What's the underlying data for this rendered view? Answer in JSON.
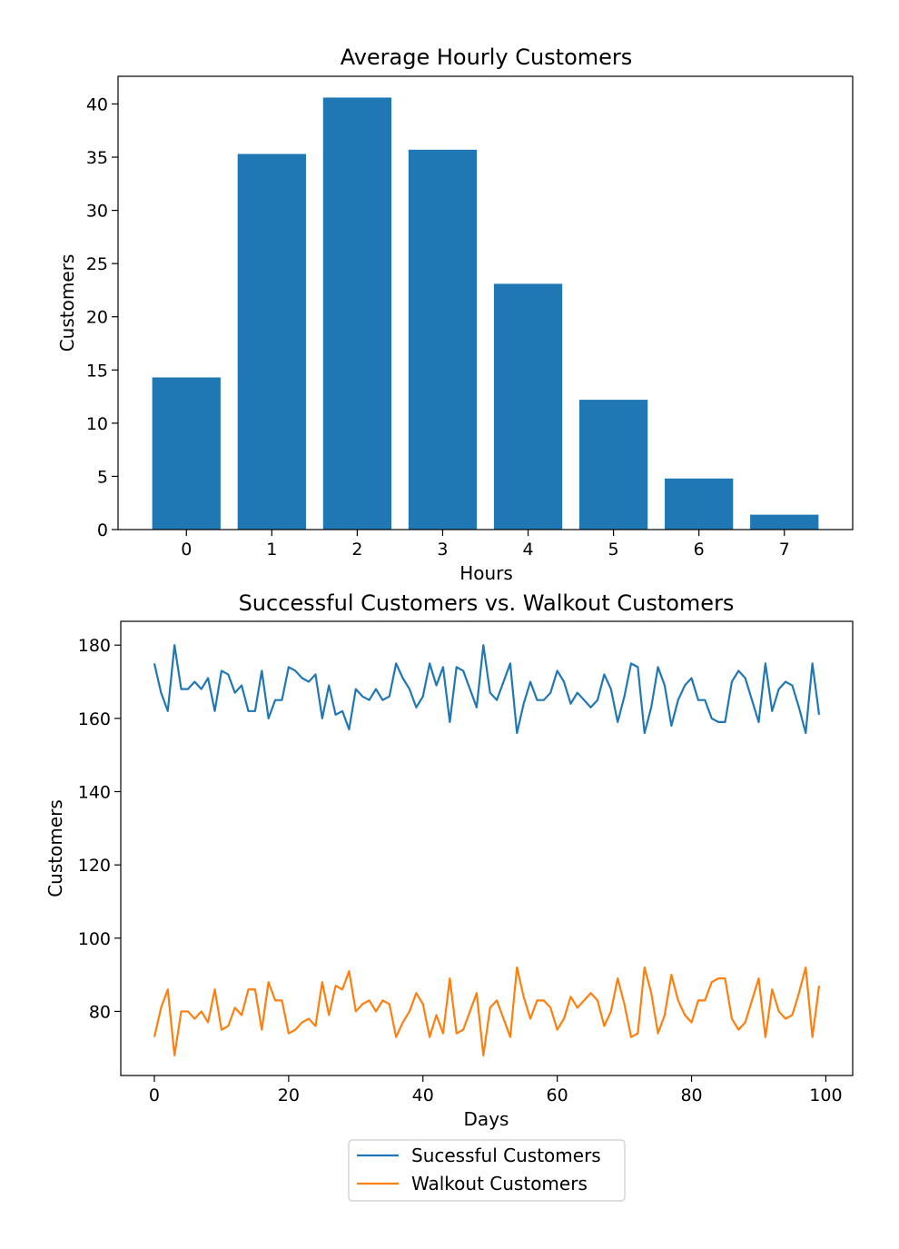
{
  "chart_data": [
    {
      "type": "bar",
      "title": "Average Hourly Customers",
      "xlabel": "Hours",
      "ylabel": "Customers",
      "categories": [
        "0",
        "1",
        "2",
        "3",
        "4",
        "5",
        "6",
        "7"
      ],
      "values": [
        14.3,
        35.3,
        40.6,
        35.7,
        23.1,
        12.2,
        4.8,
        1.4
      ],
      "xlim": [
        -0.8,
        7.8
      ],
      "ylim": [
        0,
        42.6
      ],
      "yticks": [
        0,
        5,
        10,
        15,
        20,
        25,
        30,
        35,
        40
      ],
      "color": "#1f77b4",
      "grid": false
    },
    {
      "type": "line",
      "title": "Successful Customers vs. Walkout Customers",
      "xlabel": "Days",
      "ylabel": "Customers",
      "xlim": [
        -5,
        104
      ],
      "ylim": [
        62.5,
        186.5
      ],
      "xticks": [
        0,
        20,
        40,
        60,
        80,
        100
      ],
      "yticks": [
        80,
        100,
        120,
        140,
        160,
        180
      ],
      "grid": false,
      "legend_position": "below",
      "x": [
        0,
        1,
        2,
        3,
        4,
        5,
        6,
        7,
        8,
        9,
        10,
        11,
        12,
        13,
        14,
        15,
        16,
        17,
        18,
        19,
        20,
        21,
        22,
        23,
        24,
        25,
        26,
        27,
        28,
        29,
        30,
        31,
        32,
        33,
        34,
        35,
        36,
        37,
        38,
        39,
        40,
        41,
        42,
        43,
        44,
        45,
        46,
        47,
        48,
        49,
        50,
        51,
        52,
        53,
        54,
        55,
        56,
        57,
        58,
        59,
        60,
        61,
        62,
        63,
        64,
        65,
        66,
        67,
        68,
        69,
        70,
        71,
        72,
        73,
        74,
        75,
        76,
        77,
        78,
        79,
        80,
        81,
        82,
        83,
        84,
        85,
        86,
        87,
        88,
        89,
        90,
        91,
        92,
        93,
        94,
        95,
        96,
        97,
        98,
        99
      ],
      "series": [
        {
          "name": "Sucessful Customers",
          "color": "#1f77b4",
          "values": [
            175,
            167,
            162,
            180,
            168,
            168,
            170,
            168,
            171,
            162,
            173,
            172,
            167,
            169,
            162,
            162,
            173,
            160,
            165,
            165,
            174,
            173,
            171,
            170,
            172,
            160,
            169,
            161,
            162,
            157,
            168,
            166,
            165,
            168,
            165,
            166,
            175,
            171,
            168,
            163,
            166,
            175,
            169,
            174,
            159,
            174,
            173,
            168,
            163,
            180,
            167,
            165,
            170,
            175,
            156,
            164,
            170,
            165,
            165,
            167,
            173,
            170,
            164,
            167,
            165,
            163,
            165,
            172,
            168,
            159,
            166,
            175,
            174,
            156,
            163,
            174,
            169,
            158,
            165,
            169,
            171,
            165,
            165,
            160,
            159,
            159,
            170,
            173,
            171,
            165,
            159,
            175,
            162,
            168,
            170,
            169,
            163,
            156,
            175,
            161
          ]
        },
        {
          "name": "Walkout Customers",
          "color": "#ff7f0e",
          "values": [
            73,
            81,
            86,
            68,
            80,
            80,
            78,
            80,
            77,
            86,
            75,
            76,
            81,
            79,
            86,
            86,
            75,
            88,
            83,
            83,
            74,
            75,
            77,
            78,
            76,
            88,
            79,
            87,
            86,
            91,
            80,
            82,
            83,
            80,
            83,
            82,
            73,
            77,
            80,
            85,
            82,
            73,
            79,
            74,
            89,
            74,
            75,
            80,
            85,
            68,
            81,
            83,
            78,
            73,
            92,
            84,
            78,
            83,
            83,
            81,
            75,
            78,
            84,
            81,
            83,
            85,
            83,
            76,
            80,
            89,
            82,
            73,
            74,
            92,
            85,
            74,
            79,
            90,
            83,
            79,
            77,
            83,
            83,
            88,
            89,
            89,
            78,
            75,
            77,
            83,
            89,
            73,
            86,
            80,
            78,
            79,
            85,
            92,
            73,
            87
          ]
        }
      ]
    }
  ]
}
